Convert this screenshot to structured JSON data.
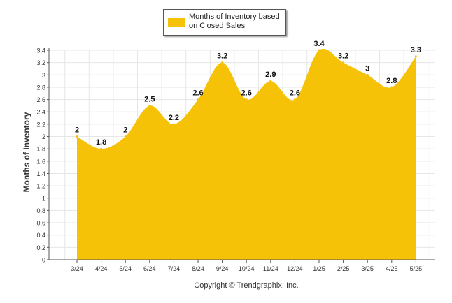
{
  "legend": {
    "label": "Months of Inventory based on Closed Sales"
  },
  "copyright": "Copyright © Trendgraphix, Inc.",
  "colors": {
    "area": "#f5c207",
    "grid": "#e6e6e6",
    "axis": "#555555"
  },
  "chart_data": {
    "type": "area",
    "title": "",
    "xlabel": "",
    "ylabel": "Months of Inventory",
    "categories": [
      "3/24",
      "4/24",
      "5/24",
      "6/24",
      "7/24",
      "8/24",
      "9/24",
      "10/24",
      "11/24",
      "12/24",
      "1/25",
      "2/25",
      "3/25",
      "4/25",
      "5/25"
    ],
    "series": [
      {
        "name": "Months of Inventory based on Closed Sales",
        "values": [
          2,
          1.8,
          2,
          2.5,
          2.2,
          2.6,
          3.2,
          2.6,
          2.9,
          2.6,
          3.4,
          3.2,
          3,
          2.8,
          3.3
        ]
      }
    ],
    "data_labels": [
      "2",
      "1.8",
      "2",
      "2.5",
      "2.2",
      "2.6",
      "3.2",
      "2.6",
      "2.9",
      "2.6",
      "3.4",
      "3.2",
      "3",
      "2.8",
      "3.3"
    ],
    "ylim": [
      0,
      3.4
    ],
    "yticks": [
      0,
      0.2,
      0.4,
      0.6,
      0.8,
      1,
      1.2,
      1.4,
      1.6,
      1.8,
      2,
      2.2,
      2.4,
      2.6,
      2.8,
      3,
      3.2,
      3.4
    ],
    "grid": true,
    "legend_position": "top-center"
  }
}
